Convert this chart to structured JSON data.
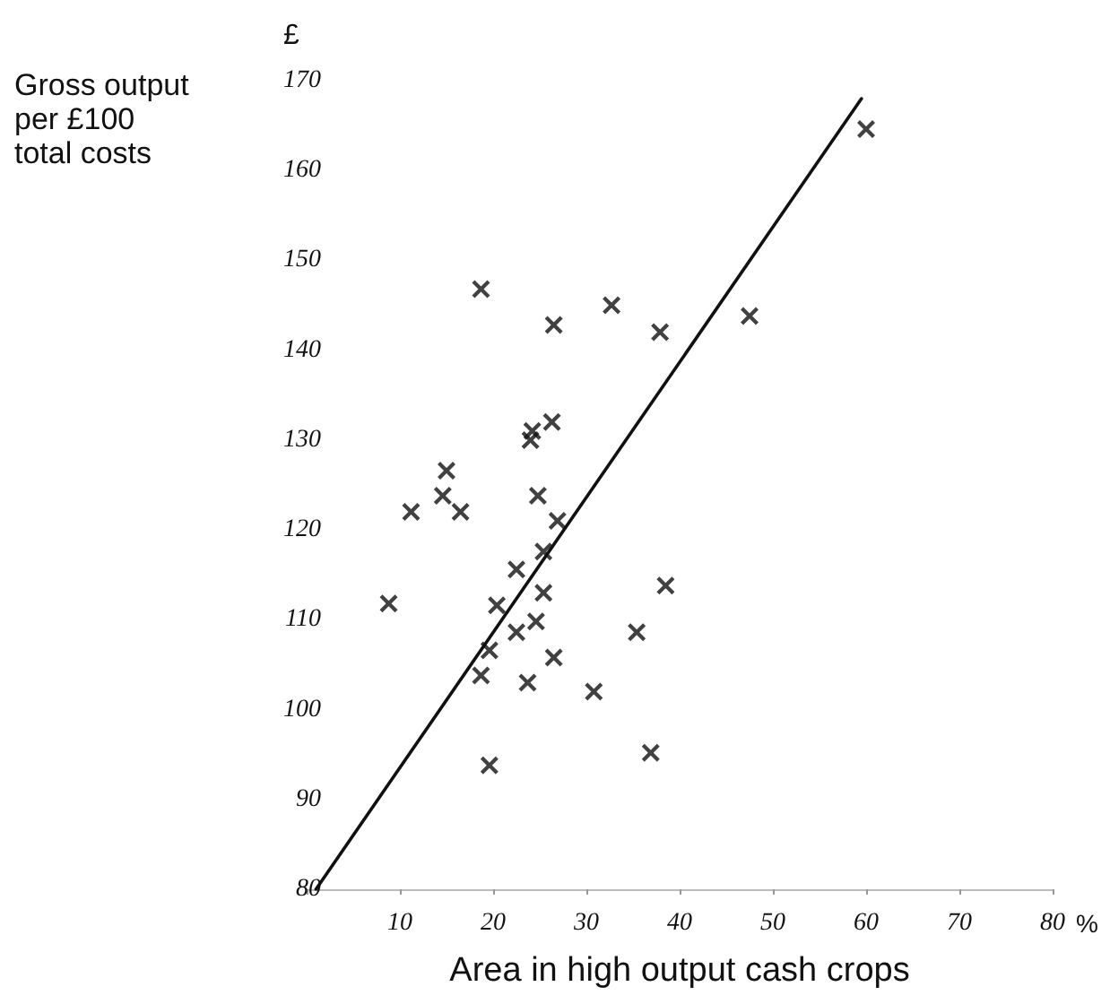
{
  "chart_data": {
    "type": "scatter",
    "xlabel": "Area in high output cash crops",
    "ylabel": "Gross output\nper £100\ntotal costs",
    "annotations": [
      "£",
      "%"
    ],
    "xlim": [
      0,
      80
    ],
    "ylim": [
      80,
      170
    ],
    "xticks": [
      {
        "value": 0,
        "label": null
      },
      10,
      20,
      30,
      40,
      50,
      60,
      70,
      80
    ],
    "yticks": [
      80,
      90,
      100,
      110,
      120,
      130,
      140,
      150,
      160,
      170
    ],
    "grid": false,
    "series": [
      {
        "color": "#111111",
        "marker": "cross",
        "x": [
          60,
          18.7,
          26.5,
          32.7,
          37.9,
          47.5,
          26.3,
          24.2,
          24,
          15,
          14.6,
          11.2,
          16.5,
          24.8,
          26.9,
          25.4,
          22.5,
          25.4,
          8.8,
          20.4,
          24.6,
          22.5,
          19.6,
          18.7,
          23.7,
          26.5,
          30.8,
          35.4,
          38.5,
          19.6,
          36.9
        ],
        "values": [
          164.6,
          146.8,
          142.8,
          145,
          142,
          143.8,
          132,
          131,
          130,
          126.6,
          123.8,
          122,
          122,
          123.8,
          121,
          117.6,
          115.6,
          113,
          111.8,
          111.6,
          109.8,
          108.6,
          106.6,
          103.8,
          103,
          105.8,
          102,
          108.6,
          113.8,
          93.8,
          95.2
        ]
      },
      {
        "type": "line",
        "color": "#111111",
        "line_style": "solid",
        "x": [
          1,
          59.5
        ],
        "values": [
          80,
          168
        ]
      }
    ]
  }
}
